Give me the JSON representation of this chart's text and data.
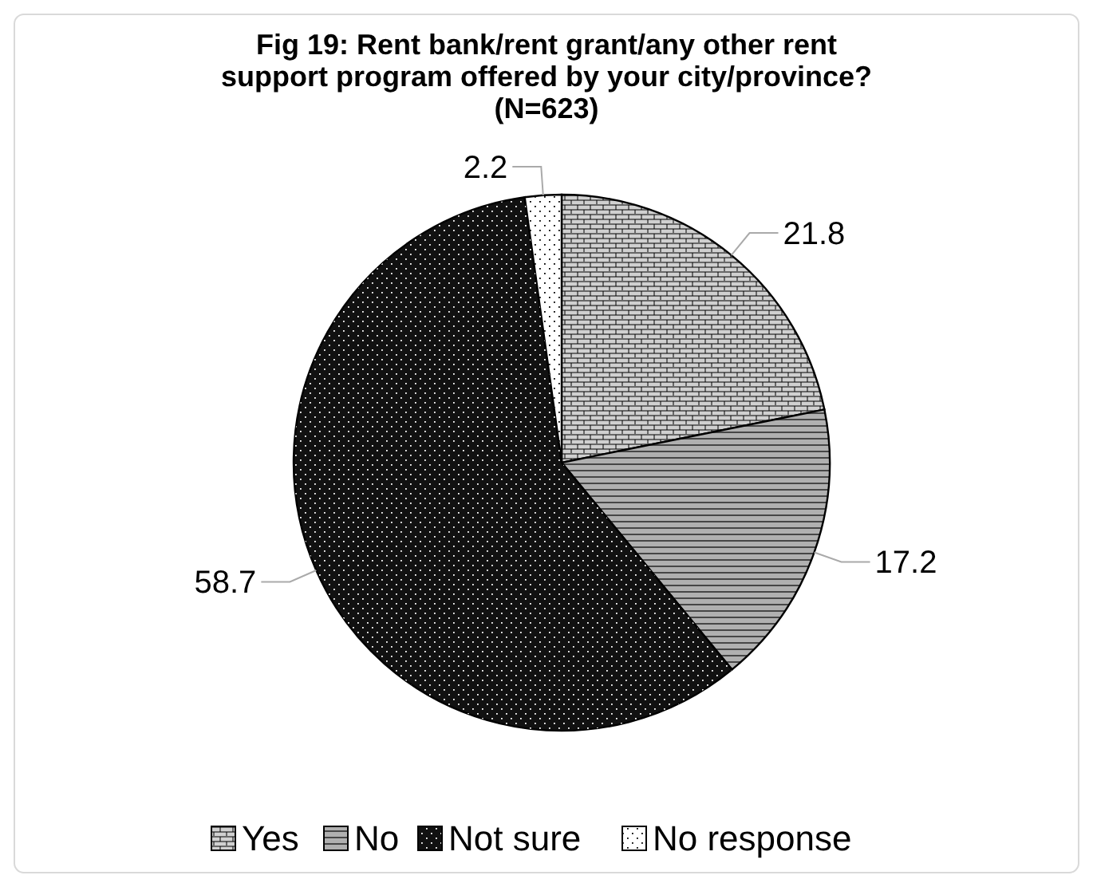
{
  "chart_data": {
    "type": "pie",
    "title": "Fig 19: Rent bank/rent grant/any other rent support program offered by your city/province? (N=623)",
    "categories": [
      "Yes",
      "No",
      "Not sure",
      "No response"
    ],
    "values": [
      21.8,
      17.2,
      58.7,
      2.2
    ],
    "colors": [
      "#d0d0d0",
      "#b0b0b0",
      "#111111",
      "#ffffff"
    ],
    "data_labels": true,
    "legend": "bottom"
  }
}
